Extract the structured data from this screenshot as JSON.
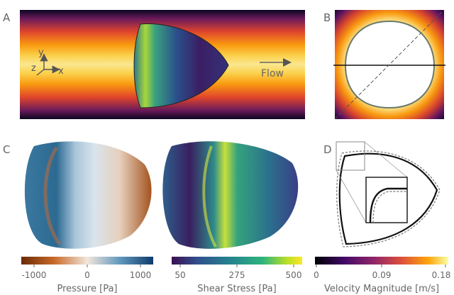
{
  "panels": {
    "a": {
      "letter": "A",
      "flow_label": "Flow",
      "axes": {
        "x": "x",
        "y": "y",
        "z": "z"
      }
    },
    "b": {
      "letter": "B"
    },
    "c": {
      "letter": "C"
    },
    "d": {
      "letter": "D"
    }
  },
  "colorbars": [
    {
      "id": "pressure",
      "label": "Pressure [Pa]",
      "ticks": [
        "-1000",
        "0",
        "1000"
      ],
      "colors": [
        "#6b2a06",
        "#c96a2a",
        "#f2e6dc",
        "#5f97bd",
        "#0f3b6b"
      ]
    },
    {
      "id": "shear",
      "label": "Shear Stress [Pa]",
      "ticks": [
        "50",
        "275",
        "500"
      ],
      "colors": [
        "#3b0f52",
        "#31508e",
        "#23838e",
        "#2fb47c",
        "#b8de29",
        "#fde725"
      ]
    },
    {
      "id": "velocity",
      "label": "Velocity Magnitude [m/s]",
      "ticks": [
        "0",
        "0.09",
        "0.18"
      ],
      "colors": [
        "#000004",
        "#420a68",
        "#932667",
        "#dd513a",
        "#fca50a",
        "#fcffa4"
      ]
    }
  ]
}
